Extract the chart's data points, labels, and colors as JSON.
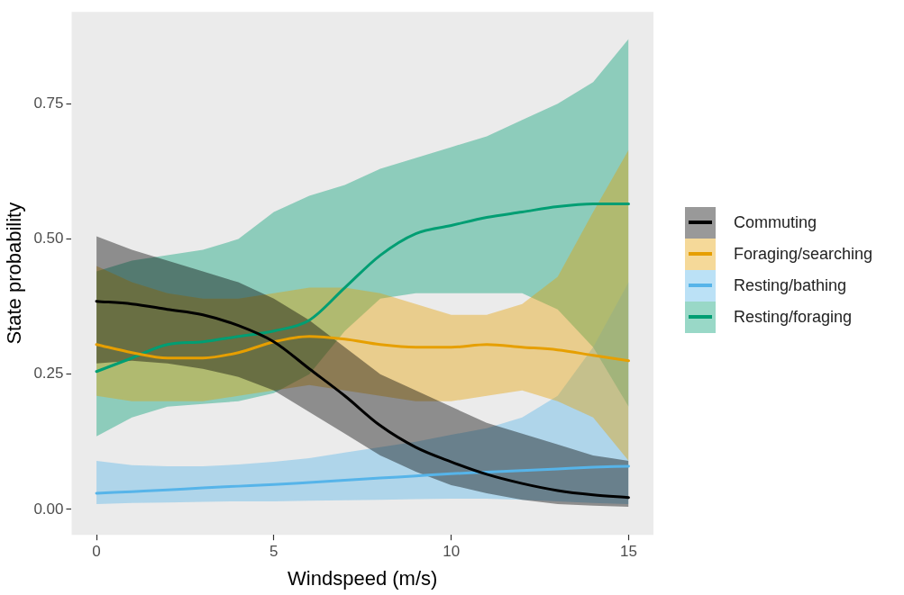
{
  "chart_data": {
    "type": "line",
    "xlabel": "Windspeed (m/s)",
    "ylabel": "State probability",
    "x": [
      0,
      1,
      2,
      3,
      4,
      5,
      6,
      7,
      8,
      9,
      10,
      11,
      12,
      13,
      14,
      15
    ],
    "xlim": [
      -0.7,
      15.7
    ],
    "xticks": [
      0,
      5,
      10,
      15
    ],
    "ylim": [
      -0.047,
      0.92
    ],
    "yticks": [
      {
        "value": 0,
        "label": "0.00"
      },
      {
        "value": 0.25,
        "label": "0.25"
      },
      {
        "value": 0.5,
        "label": "0.50"
      },
      {
        "value": 0.75,
        "label": "0.75"
      }
    ],
    "grid": false,
    "legend": "right",
    "marker": "none",
    "line_style": "solid",
    "series": [
      {
        "name": "Commuting",
        "color": "#000000",
        "values": [
          0.385,
          0.38,
          0.37,
          0.36,
          0.34,
          0.31,
          0.26,
          0.21,
          0.155,
          0.115,
          0.088,
          0.065,
          0.048,
          0.035,
          0.027,
          0.022
        ],
        "lower": [
          0.27,
          0.275,
          0.27,
          0.26,
          0.245,
          0.22,
          0.18,
          0.14,
          0.1,
          0.07,
          0.045,
          0.03,
          0.018,
          0.01,
          0.007,
          0.005
        ],
        "upper": [
          0.505,
          0.48,
          0.46,
          0.44,
          0.42,
          0.39,
          0.35,
          0.3,
          0.25,
          0.22,
          0.19,
          0.16,
          0.14,
          0.12,
          0.1,
          0.09
        ]
      },
      {
        "name": "Foraging/searching",
        "color": "#e69f00",
        "values": [
          0.305,
          0.29,
          0.28,
          0.28,
          0.29,
          0.31,
          0.32,
          0.315,
          0.305,
          0.3,
          0.3,
          0.305,
          0.3,
          0.295,
          0.285,
          0.275
        ],
        "lower": [
          0.21,
          0.2,
          0.2,
          0.2,
          0.21,
          0.22,
          0.23,
          0.22,
          0.21,
          0.2,
          0.2,
          0.21,
          0.22,
          0.2,
          0.17,
          0.09
        ],
        "upper": [
          0.45,
          0.42,
          0.4,
          0.39,
          0.39,
          0.4,
          0.41,
          0.41,
          0.4,
          0.38,
          0.36,
          0.36,
          0.38,
          0.43,
          0.55,
          0.665
        ]
      },
      {
        "name": "Resting/bathing",
        "color": "#56b4e9",
        "values": [
          0.03,
          0.033,
          0.036,
          0.04,
          0.043,
          0.046,
          0.05,
          0.054,
          0.058,
          0.062,
          0.066,
          0.069,
          0.072,
          0.075,
          0.078,
          0.08
        ],
        "lower": [
          0.01,
          0.012,
          0.013,
          0.014,
          0.015,
          0.015,
          0.016,
          0.017,
          0.018,
          0.019,
          0.02,
          0.02,
          0.018,
          0.015,
          0.012,
          0.01
        ],
        "upper": [
          0.09,
          0.082,
          0.08,
          0.08,
          0.083,
          0.088,
          0.095,
          0.105,
          0.115,
          0.125,
          0.138,
          0.15,
          0.17,
          0.21,
          0.3,
          0.42
        ]
      },
      {
        "name": "Resting/foraging",
        "color": "#009e73",
        "values": [
          0.255,
          0.28,
          0.305,
          0.31,
          0.32,
          0.33,
          0.35,
          0.41,
          0.47,
          0.51,
          0.525,
          0.54,
          0.55,
          0.56,
          0.565,
          0.565
        ],
        "lower": [
          0.135,
          0.17,
          0.19,
          0.195,
          0.2,
          0.215,
          0.25,
          0.33,
          0.39,
          0.4,
          0.4,
          0.4,
          0.4,
          0.37,
          0.3,
          0.19
        ],
        "upper": [
          0.44,
          0.46,
          0.47,
          0.48,
          0.5,
          0.55,
          0.58,
          0.6,
          0.63,
          0.65,
          0.67,
          0.69,
          0.72,
          0.75,
          0.79,
          0.87
        ]
      }
    ]
  }
}
